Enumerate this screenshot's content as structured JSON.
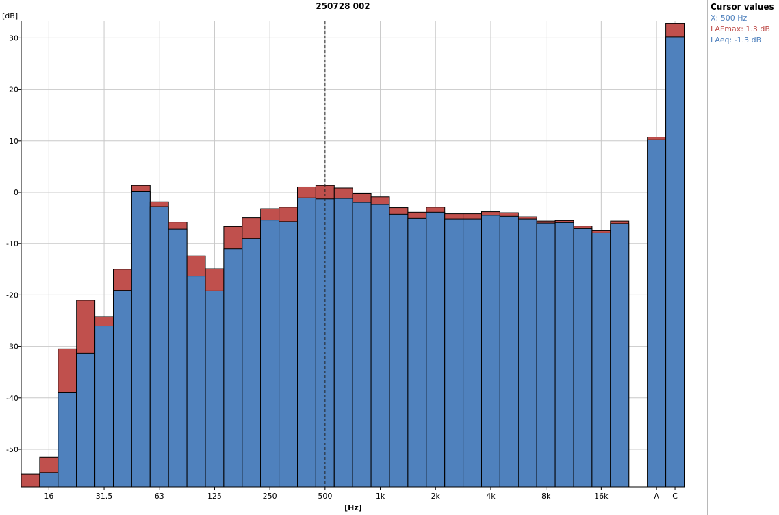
{
  "window": {
    "title": "250728 002"
  },
  "cursor_panel": {
    "title": "Cursor values",
    "x_text": "X: 500 Hz",
    "lafmax_text": "LAFmax: 1.3 dB",
    "laeq_text": "LAeq: -1.3 dB"
  },
  "colors": {
    "laeq": "#4f81bd",
    "lafmax": "#c0504d",
    "grid": "#c8c8c8",
    "bar_border": "#000000",
    "lafmax_text": "#c0504d",
    "laeq_text": "#4f81bd"
  },
  "chart_data": {
    "type": "bar",
    "title": "250728 002",
    "xlabel": "[Hz]",
    "ylabel": "[dB]",
    "ylim": [
      -57,
      33
    ],
    "yticks": [
      30,
      20,
      10,
      0,
      -10,
      -20,
      -30,
      -40,
      -50
    ],
    "grid": true,
    "stacked_overlay": true,
    "categories": [
      "12.5",
      "16",
      "20",
      "25",
      "31.5",
      "40",
      "50",
      "63",
      "80",
      "100",
      "125",
      "160",
      "200",
      "250",
      "315",
      "400",
      "500",
      "630",
      "800",
      "1k",
      "1.25k",
      "1.6k",
      "2k",
      "2.5k",
      "3.15k",
      "4k",
      "5k",
      "6.3k",
      "8k",
      "10k",
      "12.5k",
      "16k",
      "20k",
      "A",
      "C"
    ],
    "x_tick_labels": [
      {
        "category": "16",
        "label": "16"
      },
      {
        "category": "31.5",
        "label": "31.5"
      },
      {
        "category": "63",
        "label": "63"
      },
      {
        "category": "125",
        "label": "125"
      },
      {
        "category": "250",
        "label": "250"
      },
      {
        "category": "500",
        "label": "500"
      },
      {
        "category": "1k",
        "label": "1k"
      },
      {
        "category": "2k",
        "label": "2k"
      },
      {
        "category": "4k",
        "label": "4k"
      },
      {
        "category": "8k",
        "label": "8k"
      },
      {
        "category": "16k",
        "label": "16k"
      },
      {
        "category": "A",
        "label": "A"
      },
      {
        "category": "C",
        "label": "C"
      }
    ],
    "series": [
      {
        "name": "LAFmax",
        "values": [
          -54.8,
          -51.5,
          -30.5,
          -21.0,
          -24.2,
          -15.0,
          1.3,
          -1.9,
          -5.8,
          -12.4,
          -14.9,
          -6.7,
          -5.0,
          -3.2,
          -2.9,
          1.0,
          1.3,
          0.8,
          -0.2,
          -0.9,
          -3.0,
          -3.9,
          -2.9,
          -4.2,
          -4.2,
          -3.8,
          -4.0,
          -4.8,
          -5.6,
          -5.5,
          -6.6,
          -7.5,
          -5.6,
          10.7,
          32.8
        ]
      },
      {
        "name": "LAeq",
        "values": [
          null,
          -54.5,
          -38.9,
          -31.3,
          -26.0,
          -19.1,
          0.2,
          -2.8,
          -7.2,
          -16.3,
          -19.2,
          -11.0,
          -9.0,
          -5.4,
          -5.7,
          -1.1,
          -1.3,
          -1.2,
          -2.0,
          -2.4,
          -4.3,
          -5.1,
          -3.9,
          -5.2,
          -5.2,
          -4.5,
          -4.7,
          -5.2,
          -6.0,
          -5.9,
          -7.1,
          -7.9,
          -6.1,
          10.2,
          30.2
        ]
      }
    ],
    "cursor": {
      "x": "500"
    }
  }
}
